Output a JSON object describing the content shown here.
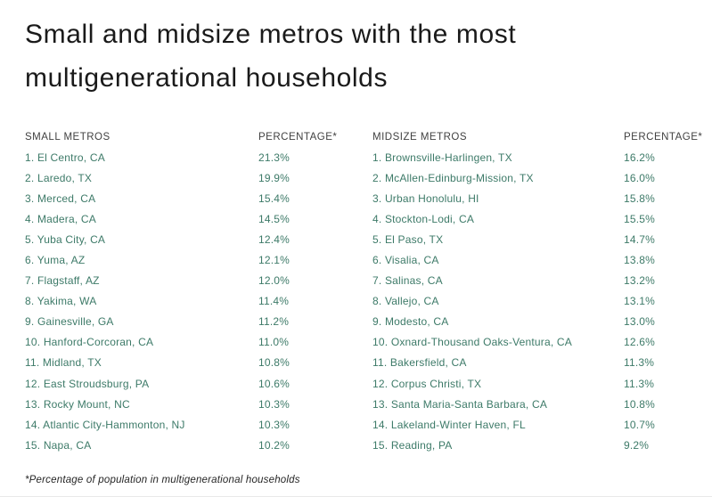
{
  "title": {
    "line1": "Small and midsize metros with the most",
    "line2": "multigenerational households",
    "full": "Small and midsize metros with the most multigenerational households"
  },
  "footnote": "*Percentage of population in multigenerational households",
  "colors": {
    "title_text": "#1a1a1a",
    "header_text": "#414141",
    "row_text": "#3d7a68",
    "footnote_text": "#252525"
  },
  "chart_data": [
    {
      "type": "table",
      "name": "Small metros",
      "columns": [
        "SMALL METROS",
        "PERCENTAGE*"
      ],
      "rows": [
        [
          "1. El Centro, CA",
          "21.3%"
        ],
        [
          "2. Laredo, TX",
          "19.9%"
        ],
        [
          "3. Merced, CA",
          "15.4%"
        ],
        [
          "4. Madera, CA",
          "14.5%"
        ],
        [
          "5. Yuba City, CA",
          "12.4%"
        ],
        [
          "6. Yuma, AZ",
          "12.1%"
        ],
        [
          "7. Flagstaff, AZ",
          "12.0%"
        ],
        [
          "8. Yakima, WA",
          "11.4%"
        ],
        [
          "9. Gainesville, GA",
          "11.2%"
        ],
        [
          "10. Hanford-Corcoran, CA",
          "11.0%"
        ],
        [
          "11. Midland, TX",
          "10.8%"
        ],
        [
          "12. East Stroudsburg, PA",
          "10.6%"
        ],
        [
          "13. Rocky Mount, NC",
          "10.3%"
        ],
        [
          "14. Atlantic City-Hammonton, NJ",
          "10.3%"
        ],
        [
          "15. Napa, CA",
          "10.2%"
        ]
      ],
      "values": [
        21.3,
        19.9,
        15.4,
        14.5,
        12.4,
        12.1,
        12.0,
        11.4,
        11.2,
        11.0,
        10.8,
        10.6,
        10.3,
        10.3,
        10.2
      ]
    },
    {
      "type": "table",
      "name": "Midsize metros",
      "columns": [
        "MIDSIZE METROS",
        "PERCENTAGE*"
      ],
      "rows": [
        [
          "1. Brownsville-Harlingen, TX",
          "16.2%"
        ],
        [
          "2. McAllen-Edinburg-Mission, TX",
          "16.0%"
        ],
        [
          "3. Urban Honolulu, HI",
          "15.8%"
        ],
        [
          "4. Stockton-Lodi, CA",
          "15.5%"
        ],
        [
          "5. El Paso, TX",
          "14.7%"
        ],
        [
          "6. Visalia, CA",
          "13.8%"
        ],
        [
          "7. Salinas, CA",
          "13.2%"
        ],
        [
          "8. Vallejo, CA",
          "13.1%"
        ],
        [
          "9. Modesto, CA",
          "13.0%"
        ],
        [
          "10. Oxnard-Thousand Oaks-Ventura, CA",
          "12.6%"
        ],
        [
          "11. Bakersfield, CA",
          "11.3%"
        ],
        [
          "12. Corpus Christi, TX",
          "11.3%"
        ],
        [
          "13. Santa Maria-Santa Barbara, CA",
          "10.8%"
        ],
        [
          "14. Lakeland-Winter Haven, FL",
          "10.7%"
        ],
        [
          "15. Reading, PA",
          "9.2%"
        ]
      ],
      "values": [
        16.2,
        16.0,
        15.8,
        15.5,
        14.7,
        13.8,
        13.2,
        13.1,
        13.0,
        12.6,
        11.3,
        11.3,
        10.8,
        10.7,
        9.2
      ]
    }
  ]
}
